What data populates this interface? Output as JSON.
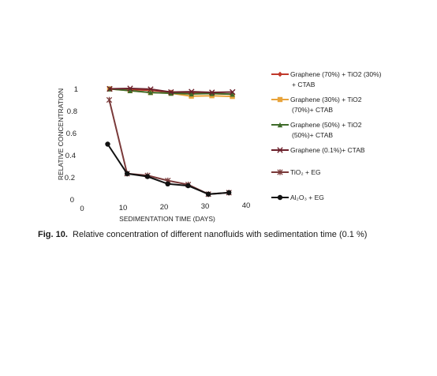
{
  "chart_data": {
    "type": "line",
    "ylabel": "RELATIVE CONCENTRATION",
    "xlabel": "SEDIMENTATION TIME (DAYS)",
    "x_ticks": [
      "0",
      "10",
      "20",
      "30",
      "40"
    ],
    "y_ticks": [
      "0",
      "0.2",
      "0.4",
      "0.6",
      "0.8",
      "1"
    ],
    "xlim": [
      0,
      40
    ],
    "ylim": [
      0,
      1
    ],
    "grid": false,
    "legend_position": "right",
    "series": [
      {
        "name": "Graphene (70%) + TiO2 (30%) + CTAB",
        "legend_lines": [
          "Graphene (70%) + TiO2 (30%)",
          "+ CTAB"
        ],
        "color": "#c0392b",
        "marker": "diamond",
        "x": [
          5,
          10,
          15,
          20,
          25,
          30,
          35
        ],
        "y": [
          1.0,
          0.99,
          0.98,
          0.96,
          0.95,
          0.94,
          0.93
        ]
      },
      {
        "name": "Graphene (30%) + TiO2 (70%)+ CTAB",
        "legend_lines": [
          "Graphene (30%) + TiO2",
          "(70%)+ CTAB"
        ],
        "color": "#e8a33a",
        "marker": "square",
        "x": [
          5,
          10,
          15,
          20,
          25,
          30,
          35
        ],
        "y": [
          1.0,
          0.98,
          0.96,
          0.95,
          0.92,
          0.92,
          0.91
        ]
      },
      {
        "name": "Graphene (50%) + TiO2 (50%)+ CTAB",
        "legend_lines": [
          "Graphene (50%) + TiO2",
          "(50%)+ CTAB"
        ],
        "color": "#3f6b2a",
        "marker": "triangle",
        "x": [
          5,
          10,
          15,
          20,
          25,
          30,
          35
        ],
        "y": [
          1.0,
          0.98,
          0.96,
          0.95,
          0.94,
          0.94,
          0.93
        ]
      },
      {
        "name": "Graphene (0.1%)+ CTAB",
        "legend_lines": [
          "Graphene (0.1%)+ CTAB"
        ],
        "color": "#6b1f2a",
        "marker": "x",
        "x": [
          5,
          10,
          15,
          20,
          25,
          30,
          35
        ],
        "y": [
          1.0,
          1.0,
          0.99,
          0.96,
          0.96,
          0.95,
          0.95
        ]
      },
      {
        "name": "TiO₂ + EG",
        "legend_lines": [
          "TiO₂ + EG"
        ],
        "color": "#7a3a3a",
        "marker": "star",
        "x": [
          5,
          10,
          15,
          20,
          25,
          30,
          35
        ],
        "y": [
          0.9,
          0.23,
          0.21,
          0.16,
          0.12,
          0.03,
          0.04
        ]
      },
      {
        "name": "Al₂O₃ + EG",
        "legend_lines": [
          "Al₂O₃ + EG"
        ],
        "color": "#111111",
        "marker": "circle",
        "x": [
          5,
          10,
          15,
          20,
          25,
          30,
          35
        ],
        "y": [
          0.5,
          0.23,
          0.2,
          0.13,
          0.11,
          0.03,
          0.04
        ]
      }
    ]
  },
  "caption": {
    "label": "Fig. 10.",
    "text": "Relative concentration of different nanofluids with sedimentation time (0.1 %)"
  }
}
